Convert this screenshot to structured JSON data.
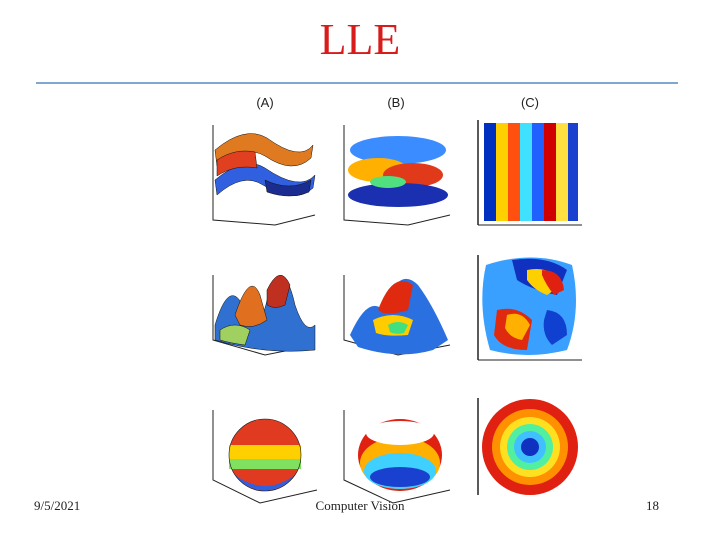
{
  "slide": {
    "title": "LLE",
    "title_color": "#d81b1b",
    "rule_color": "#7fa7cf",
    "column_labels": [
      "(A)",
      "(B)",
      "(C)"
    ]
  },
  "figure": {
    "rows": [
      {
        "shape": "swiss-roll",
        "panels": [
          "surface",
          "point-cloud",
          "embedding"
        ]
      },
      {
        "shape": "twin-peaks",
        "panels": [
          "surface",
          "point-cloud",
          "embedding"
        ]
      },
      {
        "shape": "sphere",
        "panels": [
          "surface",
          "point-cloud",
          "embedding"
        ]
      }
    ],
    "colormap": [
      "#00008f",
      "#0050ff",
      "#00c8ff",
      "#40ff80",
      "#ffff00",
      "#ff8000",
      "#d00000",
      "#800000"
    ]
  },
  "footer": {
    "date": "9/5/2021",
    "center": "Computer Vision",
    "page_number": "18"
  }
}
